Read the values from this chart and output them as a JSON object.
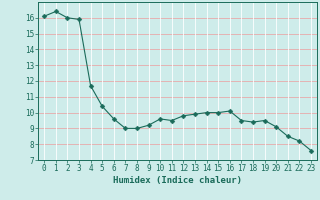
{
  "x": [
    0,
    1,
    2,
    3,
    4,
    5,
    6,
    7,
    8,
    9,
    10,
    11,
    12,
    13,
    14,
    15,
    16,
    17,
    18,
    19,
    20,
    21,
    22,
    23
  ],
  "y": [
    16.1,
    16.4,
    16.0,
    15.9,
    11.7,
    10.4,
    9.6,
    9.0,
    9.0,
    9.2,
    9.6,
    9.5,
    9.8,
    9.9,
    10.0,
    10.0,
    10.1,
    9.5,
    9.4,
    9.5,
    9.1,
    8.5,
    8.2,
    7.6
  ],
  "line_color": "#1a6b5a",
  "marker": "D",
  "marker_size": 2.5,
  "bg_color": "#ceecea",
  "grid_white_color": "#ffffff",
  "grid_pink_color": "#e8aaaa",
  "xlabel": "Humidex (Indice chaleur)",
  "xlim": [
    -0.5,
    23.5
  ],
  "ylim": [
    7,
    17
  ],
  "yticks": [
    7,
    8,
    9,
    10,
    11,
    12,
    13,
    14,
    15,
    16
  ],
  "xticks": [
    0,
    1,
    2,
    3,
    4,
    5,
    6,
    7,
    8,
    9,
    10,
    11,
    12,
    13,
    14,
    15,
    16,
    17,
    18,
    19,
    20,
    21,
    22,
    23
  ],
  "tick_fontsize": 5.5,
  "label_fontsize": 6.5
}
